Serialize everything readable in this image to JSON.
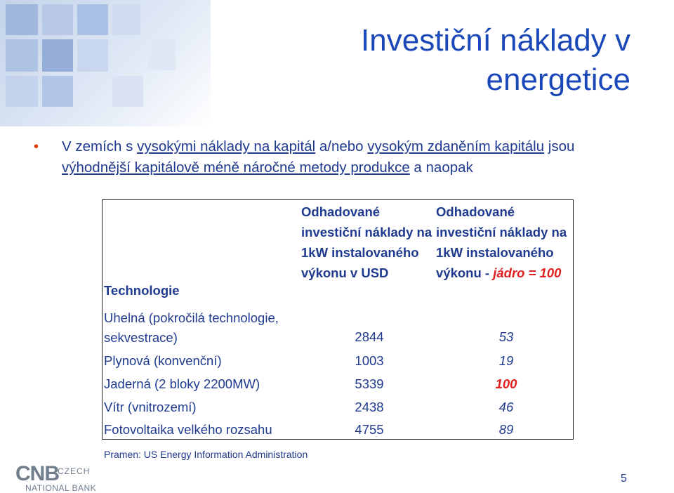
{
  "slide": {
    "title_line1": "Investiční náklady v",
    "title_line2": "energetice",
    "bullet": {
      "part1": "V zemích s ",
      "link1": "vysokými náklady na kapitál",
      "part2": " a/nebo ",
      "link2": "vysokým zdaněním kapitálu",
      "part3": " jsou ",
      "link3": "výhodnější kapitálově méně náročné metody produkce",
      "part4": " a naopak"
    }
  },
  "table": {
    "header_technology": "Technologie",
    "header_usd": "Odhadované investiční náklady na 1kW instalovaného výkonu v USD",
    "header_index_prefix": "Odhadované investiční náklady na 1kW instalovaného výkonu - ",
    "header_index_highlight": "jádro = 100",
    "rows": [
      {
        "name_line1": "Uhelná (pokročilá technologie,",
        "name_line2": "sekvestrace)",
        "usd": "2844",
        "index": "53"
      },
      {
        "name": "Plynová (konvenční)",
        "usd": "1003",
        "index": "19"
      },
      {
        "name": "Jaderná (2 bloky 2200MW)",
        "usd": "5339",
        "index": "100"
      },
      {
        "name": "Vítr (vnitrozemí)",
        "usd": "2438",
        "index": "46"
      },
      {
        "name": "Fotovoltaika velkého rozsahu",
        "usd": "4755",
        "index": "89"
      }
    ]
  },
  "source": "Pramen: US Energy Information Administration",
  "logo": {
    "mark": "CNB",
    "line1": "CZECH",
    "line2": "NATIONAL BANK"
  },
  "page_number": "5",
  "colors": {
    "title": "#1a48b8",
    "text": "#1f3a8f",
    "highlight": "#e02020",
    "bullet": "#e03a00"
  }
}
